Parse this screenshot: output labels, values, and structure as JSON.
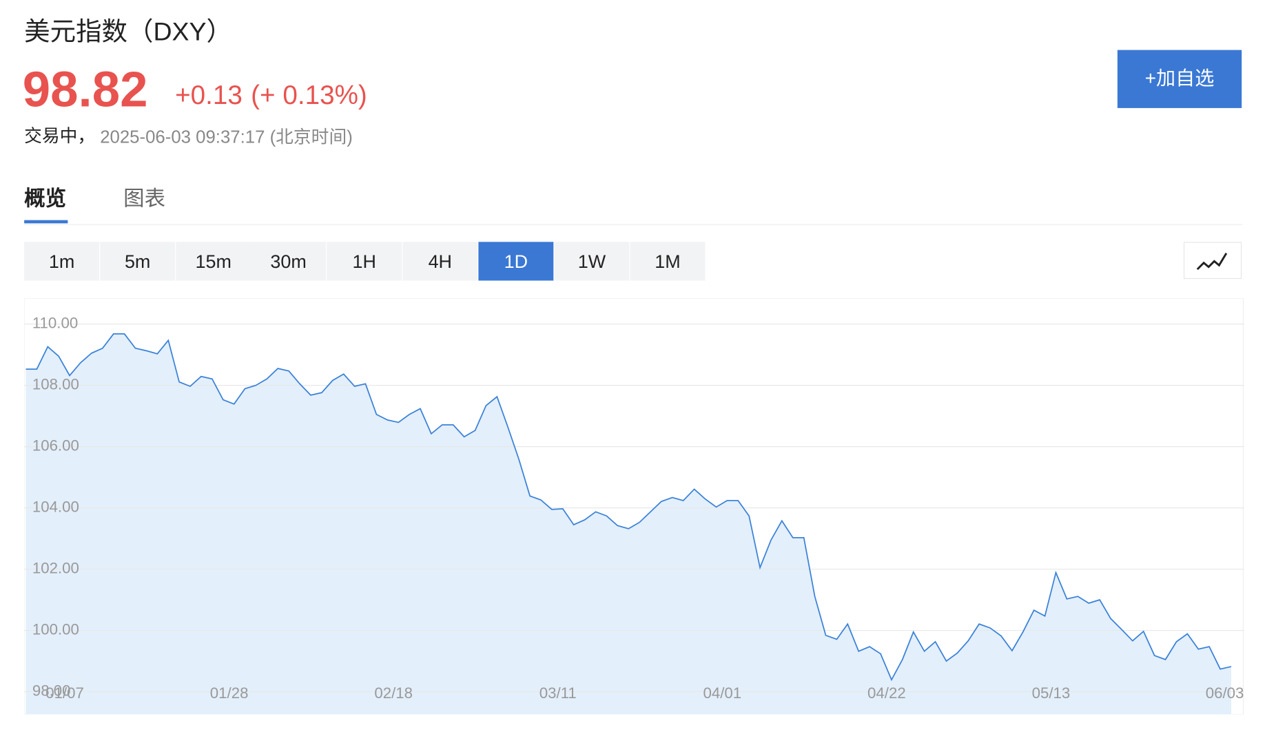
{
  "header": {
    "title": "美元指数（DXY）",
    "price": "98.82",
    "change": "+0.13",
    "change_pct": "(+ 0.13%)",
    "status": "交易中，",
    "timestamp": "2025-06-03 09:37:17 (北京时间)",
    "button": "+加自选"
  },
  "tabs": [
    "概览",
    "图表"
  ],
  "intervals": [
    "1m",
    "5m",
    "15m",
    "30m",
    "1H",
    "4H",
    "1D",
    "1W",
    "1M"
  ],
  "chart_data": {
    "type": "area",
    "color": "#3a82d8",
    "fill": "#e3effb",
    "grid": true,
    "ylim": [
      97.26,
      110.84
    ],
    "yticks": [
      {
        "value": 98,
        "label": "98.00"
      },
      {
        "value": 100,
        "label": "100.00"
      },
      {
        "value": 102,
        "label": "102.00"
      },
      {
        "value": 104,
        "label": "104.00"
      },
      {
        "value": 106,
        "label": "106.00"
      },
      {
        "value": 108,
        "label": "108.00"
      },
      {
        "value": 110,
        "label": "110.00"
      }
    ],
    "categories": [
      null,
      null,
      null,
      null,
      "01/07",
      null,
      null,
      null,
      null,
      null,
      null,
      null,
      null,
      null,
      null,
      null,
      null,
      null,
      null,
      "01/28",
      null,
      null,
      null,
      null,
      null,
      null,
      null,
      null,
      null,
      null,
      null,
      null,
      null,
      null,
      "02/18",
      null,
      null,
      null,
      null,
      null,
      null,
      null,
      null,
      null,
      null,
      null,
      null,
      null,
      null,
      "03/11",
      null,
      null,
      null,
      null,
      null,
      null,
      null,
      null,
      null,
      null,
      null,
      null,
      null,
      null,
      "04/01",
      null,
      null,
      null,
      null,
      null,
      null,
      null,
      null,
      null,
      null,
      null,
      null,
      null,
      null,
      "04/22",
      null,
      null,
      null,
      null,
      null,
      null,
      null,
      null,
      null,
      null,
      null,
      null,
      null,
      null,
      "05/13",
      null,
      null,
      null,
      null,
      null,
      null,
      null,
      null,
      null,
      null,
      null,
      null,
      null,
      null,
      null,
      "06/03"
    ],
    "values": [
      108.53,
      108.53,
      109.26,
      108.95,
      108.32,
      108.74,
      109.05,
      109.21,
      109.68,
      109.68,
      109.21,
      109.13,
      109.03,
      109.47,
      108.11,
      107.97,
      108.29,
      108.21,
      107.53,
      107.39,
      107.89,
      108.0,
      108.21,
      108.55,
      108.47,
      108.05,
      107.68,
      107.76,
      108.16,
      108.37,
      107.97,
      108.05,
      107.05,
      106.87,
      106.79,
      107.05,
      107.24,
      106.42,
      106.71,
      106.71,
      106.32,
      106.53,
      107.34,
      107.63,
      106.63,
      105.58,
      104.39,
      104.26,
      103.95,
      103.97,
      103.45,
      103.61,
      103.87,
      103.74,
      103.42,
      103.32,
      103.53,
      103.87,
      104.21,
      104.34,
      104.24,
      104.61,
      104.29,
      104.03,
      104.24,
      104.24,
      103.74,
      102.05,
      102.95,
      103.58,
      103.03,
      103.03,
      101.11,
      99.84,
      99.71,
      100.21,
      99.32,
      99.47,
      99.24,
      98.39,
      99.05,
      99.95,
      99.32,
      99.63,
      99.0,
      99.26,
      99.66,
      100.21,
      100.08,
      99.82,
      99.34,
      99.95,
      100.66,
      100.47,
      101.89,
      101.03,
      101.11,
      100.89,
      101.0,
      100.39,
      100.03,
      99.66,
      99.97,
      99.18,
      99.05,
      99.63,
      99.89,
      99.39,
      99.47,
      98.74,
      98.82
    ]
  }
}
